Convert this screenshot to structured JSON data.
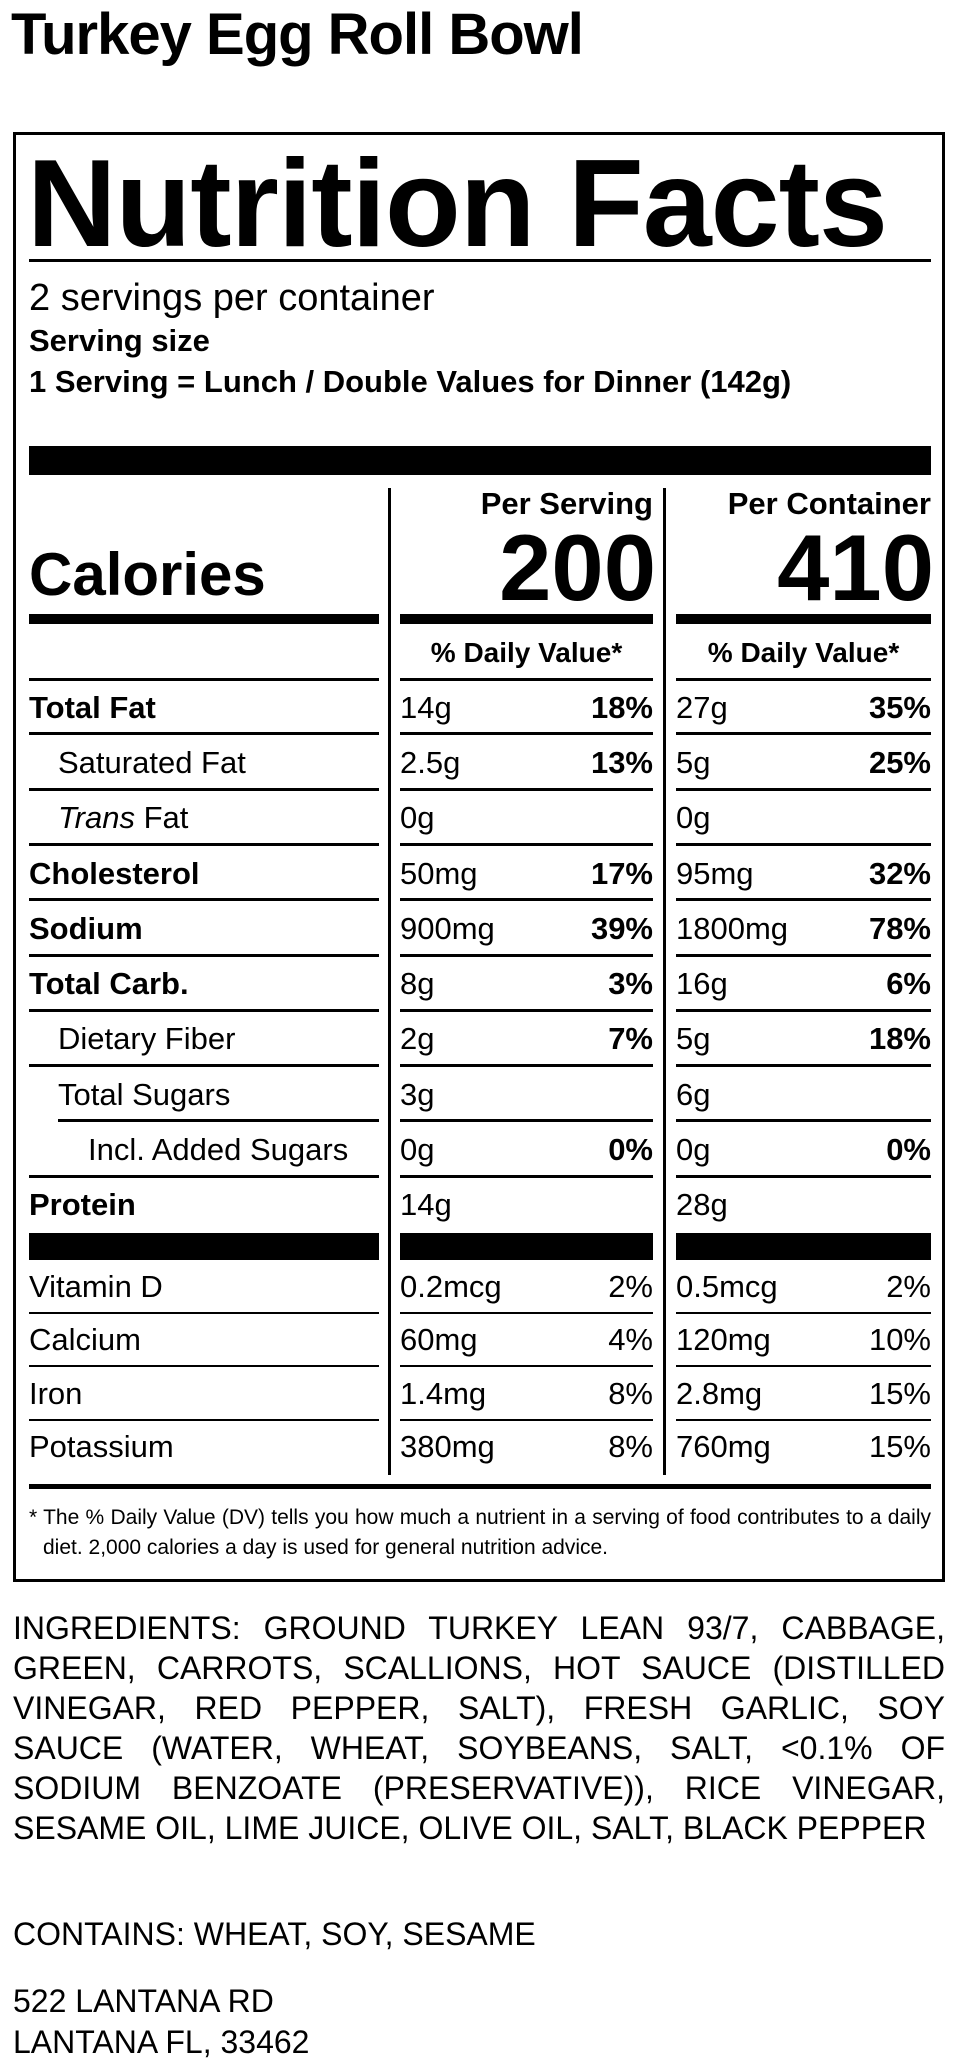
{
  "title": "Turkey Egg Roll Bowl",
  "label": {
    "heading": "Nutrition Facts",
    "servings_per_container": "2 servings per container",
    "serving_size_label": "Serving size",
    "serving_size": "1 Serving = Lunch / Double Values for Dinner (142g)",
    "column_headers": [
      "Per Serving",
      "Per Container"
    ],
    "calories_label": "Calories",
    "calories": [
      "200",
      "410"
    ],
    "daily_value_headers": [
      "% Daily Value*",
      "% Daily Value*"
    ],
    "nutrients": [
      {
        "name": "Total Fat",
        "per_serving": {
          "amount": "14g",
          "daily_value": "18%"
        },
        "per_container": {
          "amount": "27g",
          "daily_value": "35%"
        }
      },
      {
        "name": "Saturated Fat",
        "per_serving": {
          "amount": "2.5g",
          "daily_value": "13%"
        },
        "per_container": {
          "amount": "5g",
          "daily_value": "25%"
        }
      },
      {
        "name_prefix": "Trans",
        "name": "Fat",
        "per_serving": {
          "amount": "0g"
        },
        "per_container": {
          "amount": "0g"
        }
      },
      {
        "name": "Cholesterol",
        "per_serving": {
          "amount": "50mg",
          "daily_value": "17%"
        },
        "per_container": {
          "amount": "95mg",
          "daily_value": "32%"
        }
      },
      {
        "name": "Sodium",
        "per_serving": {
          "amount": "900mg",
          "daily_value": "39%"
        },
        "per_container": {
          "amount": "1800mg",
          "daily_value": "78%"
        }
      },
      {
        "name": "Total Carb.",
        "per_serving": {
          "amount": "8g",
          "daily_value": "3%"
        },
        "per_container": {
          "amount": "16g",
          "daily_value": "6%"
        }
      },
      {
        "name": "Dietary Fiber",
        "per_serving": {
          "amount": "2g",
          "daily_value": "7%"
        },
        "per_container": {
          "amount": "5g",
          "daily_value": "18%"
        }
      },
      {
        "name": "Total Sugars",
        "per_serving": {
          "amount": "3g"
        },
        "per_container": {
          "amount": "6g"
        }
      },
      {
        "name": "Incl. Added Sugars",
        "per_serving": {
          "amount": "0g",
          "daily_value": "0%"
        },
        "per_container": {
          "amount": "0g",
          "daily_value": "0%"
        }
      },
      {
        "name": "Protein",
        "per_serving": {
          "amount": "14g"
        },
        "per_container": {
          "amount": "28g"
        }
      }
    ],
    "vitamins": [
      {
        "name": "Vitamin D",
        "per_serving": {
          "amount": "0.2mcg",
          "daily_value": "2%"
        },
        "per_container": {
          "amount": "0.5mcg",
          "daily_value": "2%"
        }
      },
      {
        "name": "Calcium",
        "per_serving": {
          "amount": "60mg",
          "daily_value": "4%"
        },
        "per_container": {
          "amount": "120mg",
          "daily_value": "10%"
        }
      },
      {
        "name": "Iron",
        "per_serving": {
          "amount": "1.4mg",
          "daily_value": "8%"
        },
        "per_container": {
          "amount": "2.8mg",
          "daily_value": "15%"
        }
      },
      {
        "name": "Potassium",
        "per_serving": {
          "amount": "380mg",
          "daily_value": "8%"
        },
        "per_container": {
          "amount": "760mg",
          "daily_value": "15%"
        }
      }
    ],
    "footnote_marker": "*",
    "footnote": "The % Daily Value (DV) tells you how much a nutrient in a serving of food contributes to a daily diet. 2,000 calories a day is used for general nutrition advice."
  },
  "ingredients": "INGREDIENTS: GROUND TURKEY LEAN 93/7, CABBAGE, GREEN, CARROTS, SCALLIONS, HOT SAUCE (DISTILLED VINEGAR, RED PEPPER, SALT), FRESH GARLIC, SOY SAUCE (WATER, WHEAT, SOYBEANS, SALT, <0.1% OF SODIUM BENZOATE (PRESERVATIVE)), RICE VINEGAR, SESAME OIL, LIME JUICE, OLIVE OIL, SALT, BLACK PEPPER",
  "contains": "CONTAINS: WHEAT, SOY, SESAME",
  "address": [
    "522 LANTANA RD",
    "LANTANA FL, 33462"
  ]
}
